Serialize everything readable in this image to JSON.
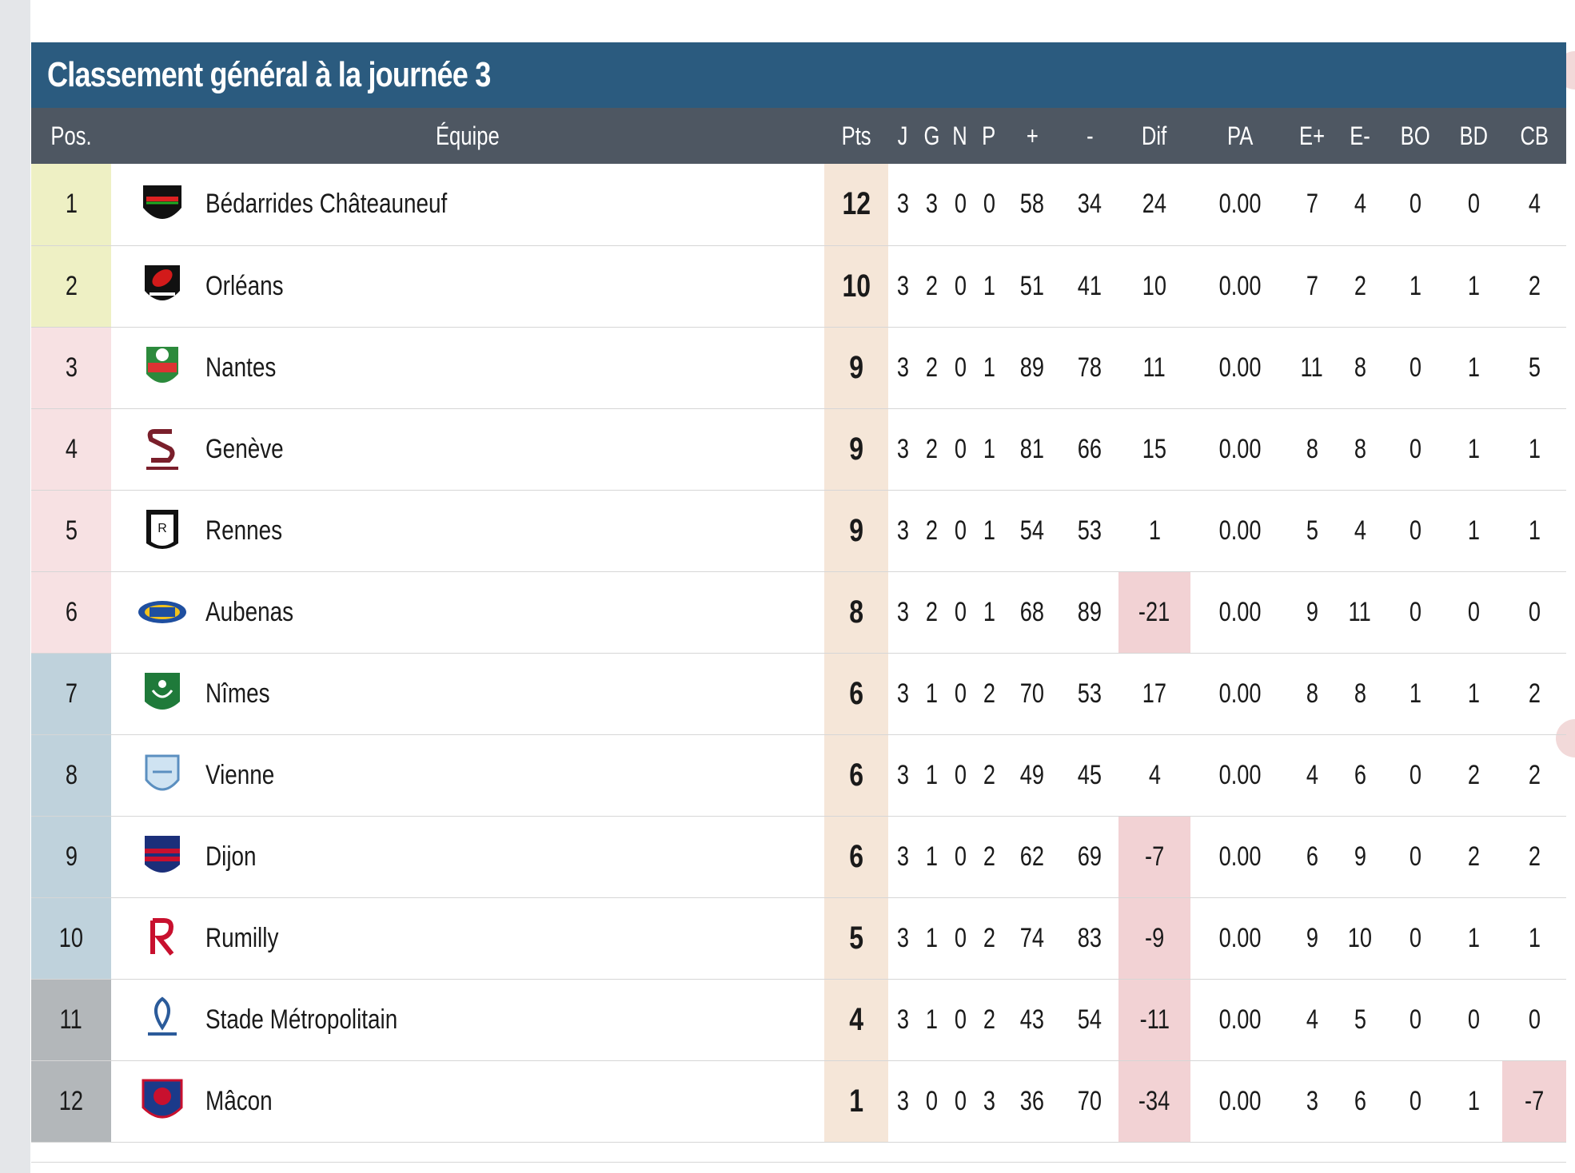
{
  "title": "Classement général à la journée 3",
  "columns": [
    "Pos.",
    "Équipe",
    "Pts",
    "J",
    "G",
    "N",
    "P",
    "+",
    "-",
    "Dif",
    "PA",
    "E+",
    "E-",
    "BO",
    "BD",
    "CB"
  ],
  "colors": {
    "title_bg": "#2b5b7f",
    "header_bg": "#4e5762",
    "pts_bg": "#f5e6d8",
    "negative_bg": "#f2d2d4",
    "zone_top": "#eef0c4",
    "zone_mid": "#f7e1e3",
    "zone_low": "#bfd2dc",
    "zone_bottom": "#b3b7ba"
  },
  "rows": [
    {
      "pos": "1",
      "team": "Bédarrides Châteauneuf",
      "logo": "asbc-shield-icon",
      "pts": "12",
      "j": "3",
      "g": "3",
      "n": "0",
      "p": "0",
      "plus": "58",
      "minus": "34",
      "dif": "24",
      "pa": "0.00",
      "ep": "7",
      "em": "4",
      "bo": "0",
      "bd": "0",
      "cb": "4",
      "zone": "top",
      "dif_neg": false,
      "cb_neg": false
    },
    {
      "pos": "2",
      "team": "Orléans",
      "logo": "rugby-club-orleans-icon",
      "pts": "10",
      "j": "3",
      "g": "2",
      "n": "0",
      "p": "1",
      "plus": "51",
      "minus": "41",
      "dif": "10",
      "pa": "0.00",
      "ep": "7",
      "em": "2",
      "bo": "1",
      "bd": "1",
      "cb": "2",
      "zone": "top",
      "dif_neg": false,
      "cb_neg": false
    },
    {
      "pos": "3",
      "team": "Nantes",
      "logo": "stade-nantais-icon",
      "pts": "9",
      "j": "3",
      "g": "2",
      "n": "0",
      "p": "1",
      "plus": "89",
      "minus": "78",
      "dif": "11",
      "pa": "0.00",
      "ep": "11",
      "em": "8",
      "bo": "0",
      "bd": "1",
      "cb": "5",
      "zone": "mid",
      "dif_neg": false,
      "cb_neg": false
    },
    {
      "pos": "4",
      "team": "Genève",
      "logo": "servette-rugby-geneve-icon",
      "pts": "9",
      "j": "3",
      "g": "2",
      "n": "0",
      "p": "1",
      "plus": "81",
      "minus": "66",
      "dif": "15",
      "pa": "0.00",
      "ep": "8",
      "em": "8",
      "bo": "0",
      "bd": "1",
      "cb": "1",
      "zone": "mid",
      "dif_neg": false,
      "cb_neg": false
    },
    {
      "pos": "5",
      "team": "Rennes",
      "logo": "rennes-rugby-icon",
      "pts": "9",
      "j": "3",
      "g": "2",
      "n": "0",
      "p": "1",
      "plus": "54",
      "minus": "53",
      "dif": "1",
      "pa": "0.00",
      "ep": "5",
      "em": "4",
      "bo": "0",
      "bd": "1",
      "cb": "1",
      "zone": "mid",
      "dif_neg": false,
      "cb_neg": false
    },
    {
      "pos": "6",
      "team": "Aubenas",
      "logo": "rcav-icon",
      "pts": "8",
      "j": "3",
      "g": "2",
      "n": "0",
      "p": "1",
      "plus": "68",
      "minus": "89",
      "dif": "-21",
      "pa": "0.00",
      "ep": "9",
      "em": "11",
      "bo": "0",
      "bd": "0",
      "cb": "0",
      "zone": "mid",
      "dif_neg": true,
      "cb_neg": false
    },
    {
      "pos": "7",
      "team": "Nîmes",
      "logo": "rugby-club-nimois-icon",
      "pts": "6",
      "j": "3",
      "g": "1",
      "n": "0",
      "p": "2",
      "plus": "70",
      "minus": "53",
      "dif": "17",
      "pa": "0.00",
      "ep": "8",
      "em": "8",
      "bo": "1",
      "bd": "1",
      "cb": "2",
      "zone": "low",
      "dif_neg": false,
      "cb_neg": false
    },
    {
      "pos": "8",
      "team": "Vienne",
      "logo": "cs-vienne-icon",
      "pts": "6",
      "j": "3",
      "g": "1",
      "n": "0",
      "p": "2",
      "plus": "49",
      "minus": "45",
      "dif": "4",
      "pa": "0.00",
      "ep": "4",
      "em": "6",
      "bo": "0",
      "bd": "2",
      "cb": "2",
      "zone": "low",
      "dif_neg": false,
      "cb_neg": false
    },
    {
      "pos": "9",
      "team": "Dijon",
      "logo": "stade-dijonnais-icon",
      "pts": "6",
      "j": "3",
      "g": "1",
      "n": "0",
      "p": "2",
      "plus": "62",
      "minus": "69",
      "dif": "-7",
      "pa": "0.00",
      "ep": "6",
      "em": "9",
      "bo": "0",
      "bd": "2",
      "cb": "2",
      "zone": "low",
      "dif_neg": true,
      "cb_neg": false
    },
    {
      "pos": "10",
      "team": "Rumilly",
      "logo": "rcs-rumilly-icon",
      "pts": "5",
      "j": "3",
      "g": "1",
      "n": "0",
      "p": "2",
      "plus": "74",
      "minus": "83",
      "dif": "-9",
      "pa": "0.00",
      "ep": "9",
      "em": "10",
      "bo": "0",
      "bd": "1",
      "cb": "1",
      "zone": "low",
      "dif_neg": true,
      "cb_neg": false
    },
    {
      "pos": "11",
      "team": "Stade Métropolitain",
      "logo": "stade-metropolitain-icon",
      "pts": "4",
      "j": "3",
      "g": "1",
      "n": "0",
      "p": "2",
      "plus": "43",
      "minus": "54",
      "dif": "-11",
      "pa": "0.00",
      "ep": "4",
      "em": "5",
      "bo": "0",
      "bd": "0",
      "cb": "0",
      "zone": "bot",
      "dif_neg": true,
      "cb_neg": false
    },
    {
      "pos": "12",
      "team": "Mâcon",
      "logo": "asm-macon-icon",
      "pts": "1",
      "j": "3",
      "g": "0",
      "n": "0",
      "p": "3",
      "plus": "36",
      "minus": "70",
      "dif": "-34",
      "pa": "0.00",
      "ep": "3",
      "em": "6",
      "bo": "0",
      "bd": "1",
      "cb": "-7",
      "zone": "bot",
      "dif_neg": true,
      "cb_neg": true
    }
  ]
}
